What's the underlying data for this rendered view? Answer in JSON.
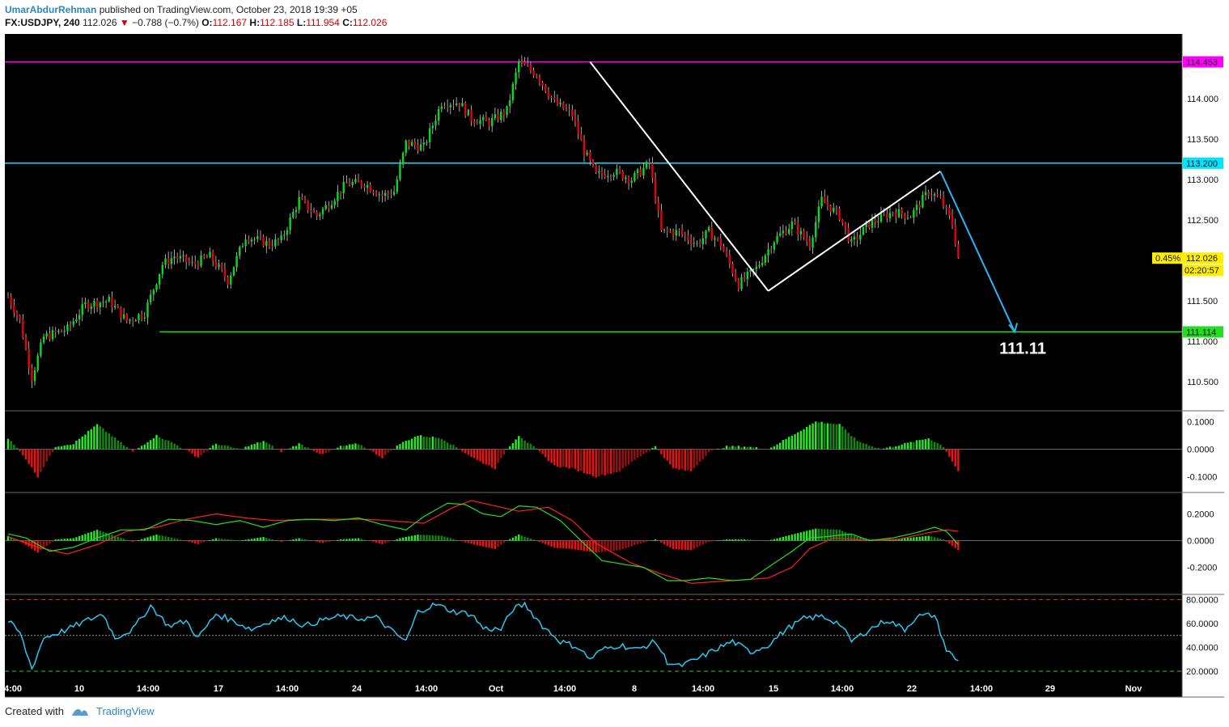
{
  "header": {
    "author": "UmarAbdurRehman",
    "published": "published on TradingView.com, October 23, 2018 19:39 +05",
    "symbol": "FX:USDJPY, 240",
    "last": "112.026",
    "change": "−0.788 (−0.7%)",
    "o_label": "O:",
    "o_val": "112.167",
    "h_label": "H:",
    "h_val": "112.185",
    "l_label": "L:",
    "l_val": "111.954",
    "c_label": "C:",
    "c_val": "112.026"
  },
  "footer": {
    "created": "Created with",
    "brand": "TradingView"
  },
  "colors": {
    "background": "#000000",
    "up": "#00e01a",
    "down": "#e8000b",
    "resistance": "#ff00ff",
    "level_mid": "#00e5ff",
    "support": "#22dd22",
    "arrow": "#29b6f6",
    "rsi": "#29c8f0",
    "macd_signal": "#ff2020",
    "macd_line": "#22dd22"
  },
  "chart_data": [
    {
      "type": "candlestick",
      "title": "FX:USDJPY, 240",
      "ylim": [
        110.15,
        114.85
      ],
      "y_ticks": [
        "114.000",
        "113.500",
        "113.000",
        "112.500",
        "112.000",
        "111.500",
        "111.000",
        "110.500"
      ],
      "x_ticks": [
        "4:00",
        "10",
        "14:00",
        "17",
        "14:00",
        "24",
        "14:00",
        "Oct",
        "14:00",
        "8",
        "14:00",
        "15",
        "14:00",
        "22",
        "14:00",
        "29",
        "Nov"
      ],
      "last_price_label": "112.026",
      "last_change_pct": "0.45%",
      "countdown": "02:20:57",
      "horizontal_levels": [
        {
          "value": 114.453,
          "label": "114.453",
          "color": "#ff00ff"
        },
        {
          "value": 113.2,
          "label": "113.200",
          "color": "#00e5ff"
        },
        {
          "value": 111.114,
          "label": "111.114",
          "color": "#22dd22"
        }
      ],
      "annotation": "111.11",
      "close_anchors": [
        [
          0,
          111.55
        ],
        [
          4,
          111.25
        ],
        [
          8,
          110.55
        ],
        [
          12,
          111.05
        ],
        [
          20,
          111.15
        ],
        [
          26,
          111.45
        ],
        [
          34,
          111.5
        ],
        [
          40,
          111.25
        ],
        [
          46,
          111.35
        ],
        [
          52,
          111.95
        ],
        [
          56,
          112.05
        ],
        [
          62,
          111.95
        ],
        [
          68,
          112.05
        ],
        [
          74,
          111.75
        ],
        [
          80,
          112.3
        ],
        [
          88,
          112.2
        ],
        [
          92,
          112.25
        ],
        [
          98,
          112.75
        ],
        [
          104,
          112.55
        ],
        [
          108,
          112.7
        ],
        [
          114,
          112.95
        ],
        [
          120,
          112.95
        ],
        [
          126,
          112.8
        ],
        [
          130,
          112.85
        ],
        [
          134,
          113.45
        ],
        [
          140,
          113.4
        ],
        [
          146,
          113.95
        ],
        [
          152,
          113.95
        ],
        [
          156,
          113.75
        ],
        [
          162,
          113.7
        ],
        [
          168,
          113.85
        ],
        [
          172,
          114.45
        ],
        [
          178,
          114.3
        ],
        [
          184,
          113.95
        ],
        [
          190,
          113.8
        ],
        [
          194,
          113.35
        ],
        [
          198,
          113.05
        ],
        [
          204,
          113.1
        ],
        [
          210,
          113.0
        ],
        [
          216,
          113.2
        ],
        [
          220,
          112.35
        ],
        [
          226,
          112.35
        ],
        [
          232,
          112.2
        ],
        [
          236,
          112.35
        ],
        [
          240,
          112.2
        ],
        [
          246,
          111.7
        ],
        [
          252,
          111.9
        ],
        [
          258,
          112.25
        ],
        [
          264,
          112.45
        ],
        [
          270,
          112.2
        ],
        [
          274,
          112.75
        ],
        [
          280,
          112.55
        ],
        [
          284,
          112.2
        ],
        [
          290,
          112.45
        ],
        [
          298,
          112.6
        ],
        [
          304,
          112.55
        ],
        [
          310,
          112.85
        ],
        [
          314,
          112.75
        ],
        [
          318,
          112.45
        ],
        [
          320,
          112.03
        ]
      ],
      "histogram_anchors": [
        [
          0,
          0.04
        ],
        [
          5,
          -0.02
        ],
        [
          10,
          -0.1
        ],
        [
          16,
          0.01
        ],
        [
          22,
          0.02
        ],
        [
          30,
          0.09
        ],
        [
          36,
          0.04
        ],
        [
          42,
          -0.01
        ],
        [
          50,
          0.05
        ],
        [
          56,
          0.02
        ],
        [
          64,
          -0.03
        ],
        [
          70,
          0.02
        ],
        [
          78,
          0.0
        ],
        [
          86,
          0.03
        ],
        [
          92,
          -0.01
        ],
        [
          98,
          0.02
        ],
        [
          106,
          -0.02
        ],
        [
          112,
          0.01
        ],
        [
          118,
          0.02
        ],
        [
          126,
          -0.03
        ],
        [
          132,
          0.02
        ],
        [
          138,
          0.05
        ],
        [
          146,
          0.04
        ],
        [
          152,
          0.0
        ],
        [
          158,
          -0.04
        ],
        [
          164,
          -0.07
        ],
        [
          168,
          0.0
        ],
        [
          172,
          0.05
        ],
        [
          178,
          0.0
        ],
        [
          184,
          -0.06
        ],
        [
          190,
          -0.07
        ],
        [
          198,
          -0.1
        ],
        [
          206,
          -0.08
        ],
        [
          212,
          -0.03
        ],
        [
          218,
          0.01
        ],
        [
          224,
          -0.07
        ],
        [
          230,
          -0.08
        ],
        [
          236,
          -0.01
        ],
        [
          242,
          0.01
        ],
        [
          248,
          0.01
        ],
        [
          256,
          0.0
        ],
        [
          264,
          0.05
        ],
        [
          272,
          0.1
        ],
        [
          280,
          0.09
        ],
        [
          286,
          0.03
        ],
        [
          294,
          0.0
        ],
        [
          302,
          0.02
        ],
        [
          310,
          0.04
        ],
        [
          315,
          0.01
        ],
        [
          320,
          -0.08
        ]
      ],
      "oscillator_ticks": [
        "0.1000",
        "0.0000",
        "-0.1000"
      ],
      "macd_ticks": [
        "0.2000",
        "0.0000",
        "-0.2000"
      ],
      "macd_line_anchors": [
        [
          0,
          0.05
        ],
        [
          6,
          0.02
        ],
        [
          14,
          -0.08
        ],
        [
          22,
          -0.05
        ],
        [
          30,
          0.02
        ],
        [
          38,
          0.08
        ],
        [
          46,
          0.08
        ],
        [
          54,
          0.16
        ],
        [
          62,
          0.15
        ],
        [
          70,
          0.12
        ],
        [
          78,
          0.15
        ],
        [
          86,
          0.1
        ],
        [
          94,
          0.15
        ],
        [
          102,
          0.16
        ],
        [
          110,
          0.15
        ],
        [
          118,
          0.17
        ],
        [
          126,
          0.12
        ],
        [
          134,
          0.08
        ],
        [
          140,
          0.18
        ],
        [
          148,
          0.28
        ],
        [
          154,
          0.27
        ],
        [
          160,
          0.2
        ],
        [
          166,
          0.18
        ],
        [
          172,
          0.26
        ],
        [
          178,
          0.25
        ],
        [
          186,
          0.15
        ],
        [
          192,
          0.02
        ],
        [
          200,
          -0.15
        ],
        [
          208,
          -0.18
        ],
        [
          214,
          -0.2
        ],
        [
          222,
          -0.3
        ],
        [
          228,
          -0.3
        ],
        [
          236,
          -0.28
        ],
        [
          244,
          -0.3
        ],
        [
          250,
          -0.29
        ],
        [
          256,
          -0.2
        ],
        [
          264,
          -0.08
        ],
        [
          270,
          0.02
        ],
        [
          276,
          0.03
        ],
        [
          284,
          0.05
        ],
        [
          290,
          0.0
        ],
        [
          298,
          0.02
        ],
        [
          306,
          0.06
        ],
        [
          312,
          0.1
        ],
        [
          316,
          0.07
        ],
        [
          320,
          -0.03
        ]
      ],
      "macd_signal_anchors": [
        [
          0,
          0.03
        ],
        [
          10,
          -0.05
        ],
        [
          20,
          -0.1
        ],
        [
          30,
          -0.03
        ],
        [
          40,
          0.07
        ],
        [
          50,
          0.1
        ],
        [
          60,
          0.16
        ],
        [
          70,
          0.2
        ],
        [
          80,
          0.17
        ],
        [
          90,
          0.15
        ],
        [
          100,
          0.16
        ],
        [
          110,
          0.16
        ],
        [
          120,
          0.16
        ],
        [
          128,
          0.15
        ],
        [
          140,
          0.13
        ],
        [
          150,
          0.25
        ],
        [
          156,
          0.3
        ],
        [
          162,
          0.27
        ],
        [
          172,
          0.22
        ],
        [
          182,
          0.25
        ],
        [
          190,
          0.15
        ],
        [
          198,
          -0.02
        ],
        [
          210,
          -0.17
        ],
        [
          220,
          -0.25
        ],
        [
          230,
          -0.32
        ],
        [
          244,
          -0.3
        ],
        [
          256,
          -0.28
        ],
        [
          264,
          -0.2
        ],
        [
          270,
          -0.06
        ],
        [
          278,
          0.02
        ],
        [
          290,
          0.0
        ],
        [
          300,
          0.01
        ],
        [
          310,
          0.06
        ],
        [
          316,
          0.08
        ],
        [
          320,
          0.07
        ]
      ],
      "rsi_ticks": [
        "80.0000",
        "60.0000",
        "40.0000",
        "20.0000"
      ],
      "rsi_anchors": [
        [
          0,
          62
        ],
        [
          4,
          52
        ],
        [
          8,
          22
        ],
        [
          12,
          48
        ],
        [
          20,
          55
        ],
        [
          26,
          62
        ],
        [
          32,
          68
        ],
        [
          36,
          48
        ],
        [
          42,
          55
        ],
        [
          48,
          75
        ],
        [
          54,
          58
        ],
        [
          60,
          62
        ],
        [
          64,
          48
        ],
        [
          70,
          68
        ],
        [
          76,
          62
        ],
        [
          82,
          55
        ],
        [
          88,
          62
        ],
        [
          94,
          65
        ],
        [
          100,
          58
        ],
        [
          106,
          63
        ],
        [
          112,
          66
        ],
        [
          118,
          64
        ],
        [
          124,
          65
        ],
        [
          130,
          52
        ],
        [
          134,
          45
        ],
        [
          138,
          70
        ],
        [
          144,
          76
        ],
        [
          150,
          70
        ],
        [
          156,
          68
        ],
        [
          160,
          56
        ],
        [
          166,
          55
        ],
        [
          170,
          72
        ],
        [
          174,
          76
        ],
        [
          180,
          58
        ],
        [
          186,
          45
        ],
        [
          192,
          40
        ],
        [
          196,
          30
        ],
        [
          200,
          38
        ],
        [
          206,
          42
        ],
        [
          212,
          38
        ],
        [
          218,
          45
        ],
        [
          222,
          28
        ],
        [
          226,
          24
        ],
        [
          232,
          30
        ],
        [
          238,
          38
        ],
        [
          244,
          45
        ],
        [
          250,
          36
        ],
        [
          256,
          42
        ],
        [
          262,
          55
        ],
        [
          268,
          64
        ],
        [
          274,
          66
        ],
        [
          280,
          60
        ],
        [
          284,
          45
        ],
        [
          290,
          55
        ],
        [
          296,
          63
        ],
        [
          302,
          55
        ],
        [
          306,
          66
        ],
        [
          312,
          67
        ],
        [
          316,
          38
        ],
        [
          320,
          28
        ]
      ]
    }
  ]
}
